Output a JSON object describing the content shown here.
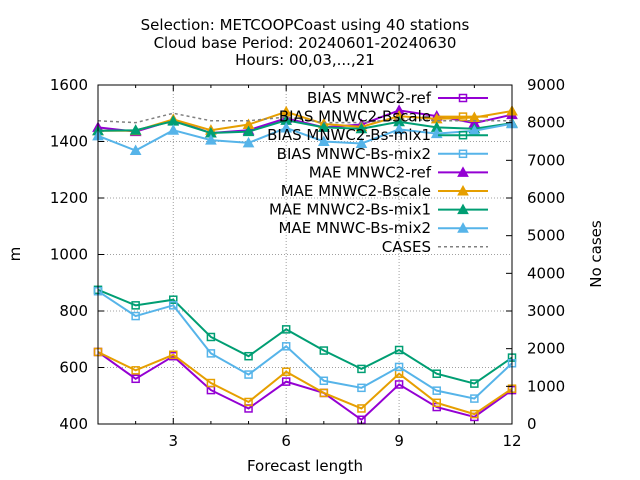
{
  "chart_data": {
    "type": "line",
    "title_lines": [
      "Selection: METCOOPCoast using    40 stations",
      "Cloud base   Period: 20240601-20240630",
      "Hours: 00,03,...,21"
    ],
    "xlabel": "Forecast length",
    "ylabel_left": "m",
    "ylabel_right": "No cases",
    "x": [
      1,
      2,
      3,
      4,
      5,
      6,
      7,
      8,
      9,
      10,
      11,
      12
    ],
    "xlim": [
      1,
      12
    ],
    "xticks": [
      3,
      6,
      9,
      12
    ],
    "ylim_left": [
      400,
      1600
    ],
    "yticks_left": [
      400,
      600,
      800,
      1000,
      1200,
      1400,
      1600
    ],
    "ylim_right": [
      0,
      9000
    ],
    "yticks_right": [
      0,
      1000,
      2000,
      3000,
      4000,
      5000,
      6000,
      7000,
      8000,
      9000
    ],
    "grid": true,
    "legend_position": "top-right",
    "series": [
      {
        "name": "BIAS MNWC2-ref",
        "axis": "left",
        "color": "#9400d3",
        "marker": "square",
        "dash": "solid",
        "values": [
          655,
          560,
          640,
          520,
          455,
          550,
          510,
          415,
          540,
          460,
          425,
          520
        ]
      },
      {
        "name": "BIAS MNWC2-Bscale",
        "axis": "left",
        "color": "#e69f00",
        "marker": "square",
        "dash": "solid",
        "values": [
          655,
          590,
          645,
          545,
          478,
          585,
          510,
          455,
          578,
          475,
          435,
          525
        ]
      },
      {
        "name": "BIAS MNWC2-Bs-mix1",
        "axis": "left",
        "color": "#009e73",
        "marker": "square",
        "dash": "solid",
        "values": [
          875,
          820,
          840,
          708,
          640,
          735,
          660,
          595,
          662,
          578,
          543,
          635
        ]
      },
      {
        "name": "BIAS MNWC-Bs-mix2",
        "axis": "left",
        "color": "#56b4e9",
        "marker": "square",
        "dash": "solid",
        "values": [
          870,
          782,
          820,
          650,
          575,
          675,
          553,
          528,
          602,
          518,
          490,
          615
        ]
      },
      {
        "name": "MAE MNWC2-ref",
        "axis": "left",
        "color": "#9400d3",
        "marker": "triangle",
        "dash": "solid",
        "values": [
          1450,
          1435,
          1475,
          1430,
          1440,
          1482,
          1450,
          1460,
          1510,
          1490,
          1465,
          1495
        ]
      },
      {
        "name": "MAE MNWC2-Bscale",
        "axis": "left",
        "color": "#e69f00",
        "marker": "triangle",
        "dash": "solid",
        "values": [
          1438,
          1438,
          1478,
          1440,
          1460,
          1505,
          1462,
          1452,
          1490,
          1480,
          1485,
          1508
        ]
      },
      {
        "name": "MAE MNWC2-Bs-mix1",
        "axis": "left",
        "color": "#009e73",
        "marker": "triangle",
        "dash": "solid",
        "values": [
          1438,
          1440,
          1472,
          1430,
          1435,
          1475,
          1450,
          1445,
          1470,
          1450,
          1445,
          1465
        ]
      },
      {
        "name": "MAE MNWC-Bs-mix2",
        "axis": "left",
        "color": "#56b4e9",
        "marker": "triangle",
        "dash": "solid",
        "values": [
          1420,
          1368,
          1440,
          1405,
          1395,
          1448,
          1400,
          1393,
          1443,
          1428,
          1438,
          1463
        ]
      },
      {
        "name": "CASES",
        "axis": "right",
        "color": "#808080",
        "marker": "none",
        "dash": "dashed",
        "values": [
          8050,
          8000,
          8250,
          8050,
          8050,
          8150,
          8000,
          8000,
          8100,
          8050,
          8050,
          8050
        ]
      }
    ]
  }
}
